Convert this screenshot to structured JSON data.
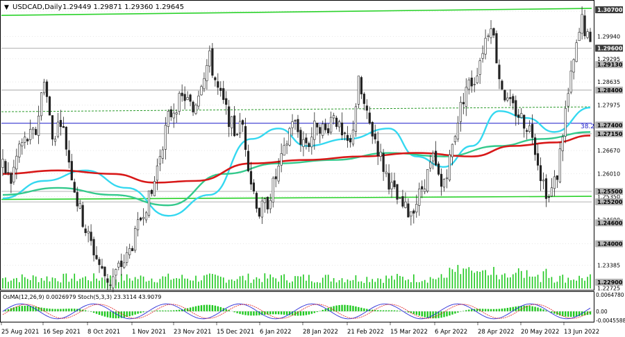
{
  "header": {
    "symbol_label": "USDCAD,Daily",
    "ohlc_text": "1.29449 1.29871 1.29360 1.29645"
  },
  "chart_data": {
    "type": "candlestick",
    "price_scale": {
      "ylim": [
        1.2272,
        1.3094
      ],
      "tick_labels": [
        "1.30660",
        "1.29940",
        "1.29295",
        "1.28635",
        "1.27975",
        "1.26670",
        "1.26010",
        "1.25350",
        "1.24690",
        "1.24000",
        "1.23385",
        "1.22725"
      ],
      "tick_values": [
        1.3066,
        1.2994,
        1.29295,
        1.28635,
        1.27975,
        1.2667,
        1.2601,
        1.2535,
        1.2469,
        1.24,
        1.23385,
        1.22725
      ]
    },
    "level_tags": [
      {
        "label": "1.30700",
        "value": 1.307,
        "dark": true
      },
      {
        "label": "1.29600",
        "value": 1.296,
        "dark": true
      },
      {
        "label": "1.29130",
        "value": 1.2913,
        "dark": false
      },
      {
        "label": "1.28400",
        "value": 1.284,
        "dark": false
      },
      {
        "label": "1.27400",
        "value": 1.274,
        "dark": false
      },
      {
        "label": "1.27150",
        "value": 1.2715,
        "dark": false
      },
      {
        "label": "1.25500",
        "value": 1.255,
        "dark": false
      },
      {
        "label": "1.25200",
        "value": 1.252,
        "dark": false
      },
      {
        "label": "1.24600",
        "value": 1.246,
        "dark": false
      },
      {
        "label": "1.24000",
        "value": 1.24,
        "dark": false
      },
      {
        "label": "1.22900",
        "value": 1.229,
        "dark": false
      }
    ],
    "fib_label": "38.2",
    "x_labels": [
      "25 Aug 2021",
      "16 Sep 2021",
      "8 Oct 2021",
      "1 Nov 2021",
      "23 Nov 2021",
      "15 Dec 2021",
      "6 Jan 2022",
      "28 Jan 2022",
      "21 Feb 2022",
      "15 Mar 2022",
      "6 Apr 2022",
      "28 Apr 2022",
      "20 May 2022",
      "13 Jun 2022"
    ],
    "price_path": [
      [
        0,
        1.262
      ],
      [
        3,
        1.258
      ],
      [
        6,
        1.268
      ],
      [
        9,
        1.27
      ],
      [
        12,
        1.272
      ],
      [
        15,
        1.288
      ],
      [
        18,
        1.27
      ],
      [
        21,
        1.276
      ],
      [
        24,
        1.264
      ],
      [
        27,
        1.252
      ],
      [
        30,
        1.244
      ],
      [
        33,
        1.238
      ],
      [
        36,
        1.232
      ],
      [
        39,
        1.229
      ],
      [
        42,
        1.233
      ],
      [
        45,
        1.236
      ],
      [
        48,
        1.242
      ],
      [
        51,
        1.25
      ],
      [
        54,
        1.254
      ],
      [
        57,
        1.266
      ],
      [
        60,
        1.276
      ],
      [
        63,
        1.28
      ],
      [
        66,
        1.282
      ],
      [
        69,
        1.278
      ],
      [
        72,
        1.287
      ],
      [
        75,
        1.293
      ],
      [
        78,
        1.284
      ],
      [
        81,
        1.278
      ],
      [
        84,
        1.272
      ],
      [
        87,
        1.274
      ],
      [
        90,
        1.258
      ],
      [
        93,
        1.249
      ],
      [
        96,
        1.252
      ],
      [
        99,
        1.259
      ],
      [
        102,
        1.266
      ],
      [
        105,
        1.276
      ],
      [
        108,
        1.27
      ],
      [
        111,
        1.269
      ],
      [
        114,
        1.275
      ],
      [
        117,
        1.272
      ],
      [
        120,
        1.278
      ],
      [
        123,
        1.27
      ],
      [
        126,
        1.268
      ],
      [
        129,
        1.286
      ],
      [
        132,
        1.276
      ],
      [
        135,
        1.27
      ],
      [
        138,
        1.262
      ],
      [
        141,
        1.256
      ],
      [
        144,
        1.251
      ],
      [
        147,
        1.249
      ],
      [
        150,
        1.252
      ],
      [
        153,
        1.258
      ],
      [
        156,
        1.264
      ],
      [
        159,
        1.256
      ],
      [
        162,
        1.264
      ],
      [
        165,
        1.276
      ],
      [
        168,
        1.285
      ],
      [
        171,
        1.287
      ],
      [
        174,
        1.296
      ],
      [
        177,
        1.304
      ],
      [
        180,
        1.288
      ],
      [
        183,
        1.28
      ],
      [
        186,
        1.278
      ],
      [
        189,
        1.275
      ],
      [
        192,
        1.272
      ],
      [
        195,
        1.26
      ],
      [
        198,
        1.253
      ],
      [
        201,
        1.26
      ],
      [
        204,
        1.278
      ],
      [
        207,
        1.292
      ],
      [
        210,
        1.304
      ],
      [
        213,
        1.296
      ]
    ],
    "series": [
      {
        "name": "",
        "color": "#34d8f0",
        "points": [
          [
            0,
            1.253
          ],
          [
            15,
            1.258
          ],
          [
            30,
            1.261
          ],
          [
            45,
            1.256
          ],
          [
            60,
            1.248
          ],
          [
            75,
            1.254
          ],
          [
            90,
            1.27
          ],
          [
            100,
            1.273
          ],
          [
            110,
            1.268
          ],
          [
            125,
            1.27
          ],
          [
            140,
            1.273
          ],
          [
            150,
            1.265
          ],
          [
            160,
            1.262
          ],
          [
            170,
            1.268
          ],
          [
            180,
            1.278
          ],
          [
            190,
            1.276
          ],
          [
            200,
            1.272
          ],
          [
            213,
            1.279
          ]
        ]
      },
      {
        "name": "",
        "color": "#34c98c",
        "points": [
          [
            0,
            1.254
          ],
          [
            20,
            1.256
          ],
          [
            40,
            1.254
          ],
          [
            60,
            1.251
          ],
          [
            80,
            1.26
          ],
          [
            100,
            1.263
          ],
          [
            120,
            1.264
          ],
          [
            140,
            1.266
          ],
          [
            160,
            1.265
          ],
          [
            180,
            1.268
          ],
          [
            195,
            1.27
          ],
          [
            213,
            1.272
          ]
        ]
      },
      {
        "name": "",
        "color": "#d81818",
        "points": [
          [
            0,
            1.26
          ],
          [
            20,
            1.261
          ],
          [
            40,
            1.26
          ],
          [
            55,
            1.2575
          ],
          [
            70,
            1.258
          ],
          [
            90,
            1.263
          ],
          [
            110,
            1.264
          ],
          [
            130,
            1.265
          ],
          [
            150,
            1.266
          ],
          [
            170,
            1.265
          ],
          [
            185,
            1.268
          ],
          [
            200,
            1.269
          ],
          [
            213,
            1.271
          ]
        ]
      }
    ],
    "sub_panel": {
      "label": "OsMA(12,26,9) 0.0026979  Stoch(5,3,3) 23.3114 43.9079",
      "tick_labels": [
        "0.0064780",
        "0.00",
        "-0.0045588"
      ]
    }
  },
  "colors": {
    "bull": "#2a2a2a",
    "bear": "#2a2a2a",
    "fib_line": "#1a1ac8",
    "support_line": "#2ad22a",
    "grid": "#9a9a9a"
  }
}
